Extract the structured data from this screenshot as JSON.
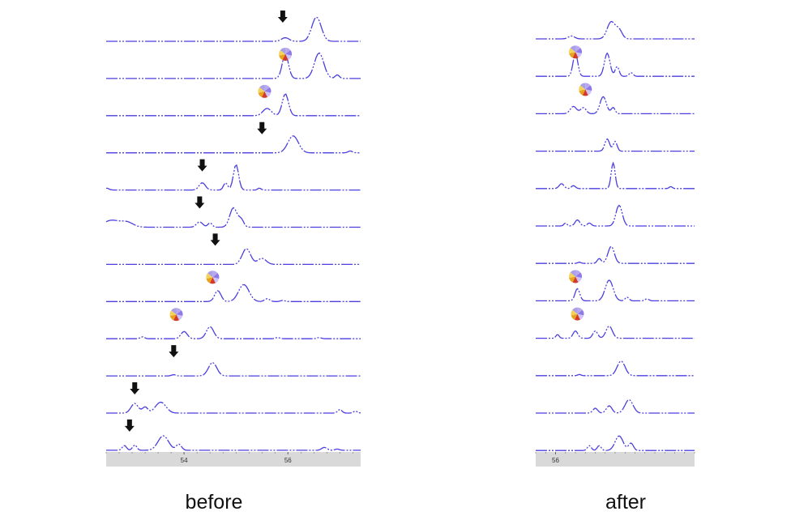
{
  "colors": {
    "trace": "#4a3fe0",
    "axis_bg": "#d9d9d9",
    "arrow": "#111111",
    "pie_colors": [
      "#b8a8f0",
      "#8d7ae6",
      "#cfc4f5",
      "#d23a2a",
      "#e8a21c",
      "#f3d35a",
      "#a9a0e8"
    ]
  },
  "captions": {
    "before": "before",
    "after": "after"
  },
  "chart_data": [
    {
      "type": "line",
      "panel": "before",
      "xlabel": "",
      "xlim": [
        52.5,
        57.4
      ],
      "x_ticks": [
        54,
        56
      ],
      "tick_labels": [
        "54",
        "56"
      ],
      "traces": [
        {
          "peaks": [
            [
              55.95,
              0.15,
              0.07
            ],
            [
              56.55,
              1.0,
              0.09
            ]
          ],
          "marker": {
            "kind": "arrow",
            "x": 55.9
          }
        },
        {
          "peaks": [
            [
              55.95,
              1.0,
              0.06
            ],
            [
              56.6,
              1.05,
              0.09
            ],
            [
              56.95,
              0.15,
              0.04
            ]
          ],
          "marker": {
            "kind": "pie",
            "x": 55.95
          }
        },
        {
          "peaks": [
            [
              55.6,
              0.3,
              0.08
            ],
            [
              55.95,
              0.9,
              0.06
            ]
          ],
          "marker": {
            "kind": "pie",
            "x": 55.55
          }
        },
        {
          "peaks": [
            [
              56.1,
              0.7,
              0.1
            ],
            [
              57.2,
              0.08,
              0.04
            ]
          ],
          "marker": {
            "kind": "arrow",
            "x": 55.5
          }
        },
        {
          "peaks": [
            [
              52.5,
              0.08,
              0.05
            ],
            [
              54.35,
              0.3,
              0.06
            ],
            [
              54.8,
              0.3,
              0.04
            ],
            [
              55.0,
              1.05,
              0.05
            ],
            [
              55.45,
              0.08,
              0.03
            ]
          ],
          "marker": {
            "kind": "arrow",
            "x": 54.35
          }
        },
        {
          "peaks": [
            [
              52.6,
              0.28,
              0.15
            ],
            [
              52.9,
              0.2,
              0.12
            ],
            [
              54.3,
              0.22,
              0.06
            ],
            [
              54.5,
              0.18,
              0.04
            ],
            [
              54.95,
              0.8,
              0.07
            ],
            [
              55.1,
              0.3,
              0.05
            ]
          ],
          "marker": {
            "kind": "arrow",
            "x": 54.3
          }
        },
        {
          "peaks": [
            [
              55.2,
              0.65,
              0.08
            ],
            [
              55.5,
              0.25,
              0.08
            ]
          ],
          "marker": {
            "kind": "arrow",
            "x": 54.6
          }
        },
        {
          "peaks": [
            [
              54.65,
              0.45,
              0.06
            ],
            [
              55.15,
              0.7,
              0.1
            ],
            [
              55.6,
              0.12,
              0.05
            ],
            [
              55.9,
              0.05,
              0.04
            ]
          ],
          "marker": {
            "kind": "pie",
            "x": 54.55
          }
        },
        {
          "peaks": [
            [
              53.2,
              0.08,
              0.04
            ],
            [
              54.0,
              0.3,
              0.06
            ],
            [
              54.5,
              0.5,
              0.07
            ],
            [
              55.8,
              0.05,
              0.04
            ],
            [
              56.6,
              0.05,
              0.04
            ]
          ],
          "marker": {
            "kind": "pie",
            "x": 53.85
          }
        },
        {
          "peaks": [
            [
              53.8,
              0.05,
              0.04
            ],
            [
              54.55,
              0.55,
              0.08
            ]
          ],
          "marker": {
            "kind": "arrow",
            "x": 53.8
          }
        },
        {
          "peaks": [
            [
              53.05,
              0.4,
              0.07
            ],
            [
              53.25,
              0.25,
              0.05
            ],
            [
              53.55,
              0.45,
              0.1
            ],
            [
              57.0,
              0.15,
              0.04
            ],
            [
              57.3,
              0.08,
              0.04
            ]
          ],
          "marker": {
            "kind": "arrow",
            "x": 53.05
          }
        },
        {
          "peaks": [
            [
              52.85,
              0.2,
              0.04
            ],
            [
              53.05,
              0.22,
              0.04
            ],
            [
              53.6,
              0.6,
              0.1
            ],
            [
              53.9,
              0.25,
              0.05
            ],
            [
              56.7,
              0.12,
              0.05
            ],
            [
              56.95,
              0.05,
              0.04
            ]
          ],
          "marker": {
            "kind": "arrow",
            "x": 52.95
          }
        }
      ]
    },
    {
      "type": "line",
      "panel": "after",
      "xlabel": "",
      "xlim": [
        55.5,
        59.5
      ],
      "x_ticks": [
        56
      ],
      "tick_labels": [
        "56"
      ],
      "traces": [
        {
          "peaks": [
            [
              56.4,
              0.12,
              0.08
            ],
            [
              57.4,
              0.7,
              0.1
            ],
            [
              57.6,
              0.35,
              0.08
            ]
          ],
          "marker": null
        },
        {
          "peaks": [
            [
              56.5,
              0.95,
              0.06
            ],
            [
              57.3,
              0.95,
              0.07
            ],
            [
              57.55,
              0.4,
              0.05
            ],
            [
              57.9,
              0.15,
              0.05
            ]
          ],
          "marker": {
            "kind": "pie",
            "x": 56.5
          }
        },
        {
          "peaks": [
            [
              56.45,
              0.3,
              0.08
            ],
            [
              56.7,
              0.25,
              0.07
            ],
            [
              57.2,
              0.7,
              0.08
            ],
            [
              57.45,
              0.25,
              0.05
            ]
          ],
          "marker": {
            "kind": "pie",
            "x": 56.75
          }
        },
        {
          "peaks": [
            [
              57.3,
              0.5,
              0.06
            ],
            [
              57.5,
              0.4,
              0.05
            ]
          ],
          "marker": null
        },
        {
          "peaks": [
            [
              56.15,
              0.2,
              0.06
            ],
            [
              56.45,
              0.12,
              0.05
            ],
            [
              57.45,
              1.05,
              0.05
            ],
            [
              58.9,
              0.08,
              0.04
            ]
          ],
          "marker": null
        },
        {
          "peaks": [
            [
              56.25,
              0.12,
              0.04
            ],
            [
              56.55,
              0.25,
              0.06
            ],
            [
              56.85,
              0.12,
              0.05
            ],
            [
              57.6,
              0.85,
              0.08
            ]
          ],
          "marker": null
        },
        {
          "peaks": [
            [
              56.6,
              0.05,
              0.04
            ],
            [
              57.1,
              0.2,
              0.05
            ],
            [
              57.4,
              0.7,
              0.08
            ]
          ],
          "marker": null
        },
        {
          "peaks": [
            [
              56.55,
              0.5,
              0.06
            ],
            [
              57.35,
              0.85,
              0.1
            ],
            [
              57.8,
              0.15,
              0.05
            ],
            [
              58.3,
              0.08,
              0.05
            ]
          ],
          "marker": {
            "kind": "pie",
            "x": 56.5
          }
        },
        {
          "peaks": [
            [
              56.05,
              0.15,
              0.04
            ],
            [
              56.5,
              0.3,
              0.06
            ],
            [
              57.0,
              0.3,
              0.06
            ],
            [
              57.35,
              0.5,
              0.08
            ]
          ],
          "marker": {
            "kind": "pie",
            "x": 56.55
          }
        },
        {
          "peaks": [
            [
              56.6,
              0.05,
              0.04
            ],
            [
              57.65,
              0.6,
              0.1
            ]
          ],
          "marker": null
        },
        {
          "peaks": [
            [
              57.0,
              0.2,
              0.06
            ],
            [
              57.35,
              0.3,
              0.07
            ],
            [
              57.85,
              0.55,
              0.1
            ]
          ],
          "marker": null
        },
        {
          "peaks": [
            [
              56.85,
              0.2,
              0.05
            ],
            [
              57.1,
              0.2,
              0.05
            ],
            [
              57.6,
              0.6,
              0.1
            ],
            [
              57.9,
              0.3,
              0.06
            ]
          ],
          "marker": null
        }
      ]
    }
  ]
}
